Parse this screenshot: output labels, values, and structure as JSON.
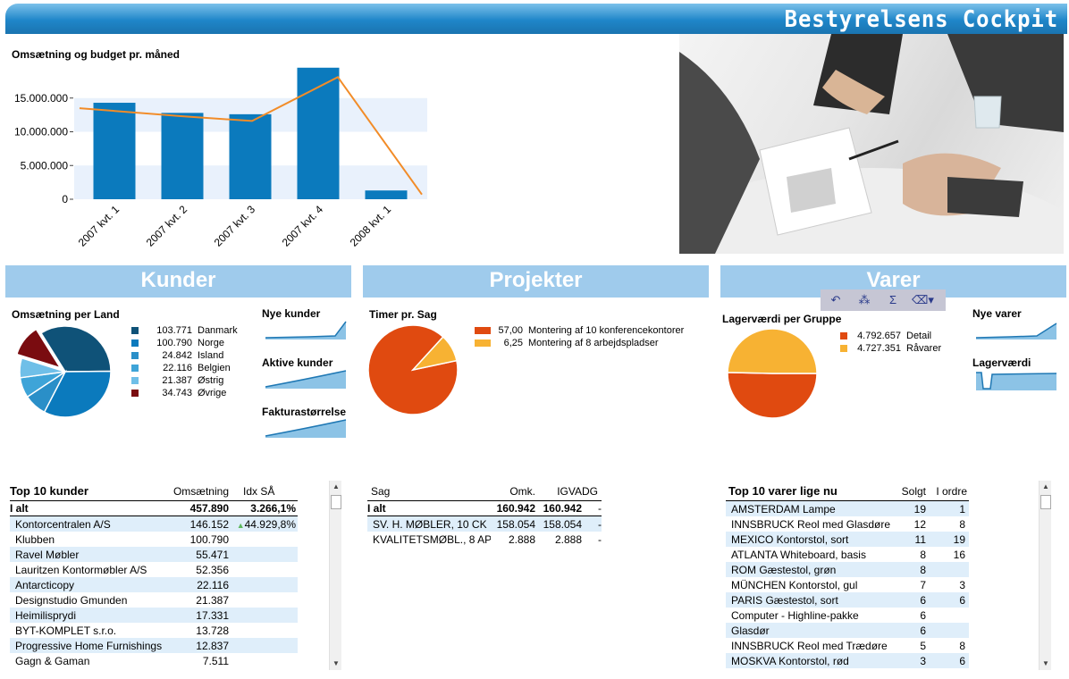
{
  "banner": {
    "title": "Bestyrelsens Cockpit"
  },
  "main_chart": {
    "title": "Omsætning og budget pr. måned",
    "y_ticks": [
      "15.000.000",
      "10.000.000",
      "5.000.000",
      "0"
    ]
  },
  "chart_data": [
    {
      "type": "bar",
      "title": "Omsætning og budget pr. måned",
      "categories": [
        "2007 kvt. 1",
        "2007 kvt. 2",
        "2007 kvt. 3",
        "2007 kvt. 4",
        "2008 kvt. 1"
      ],
      "series": [
        {
          "values": [
            14300000,
            12800000,
            12600000,
            19500000,
            1300000
          ],
          "color": "#0b7abd"
        },
        {
          "values": [
            13500000,
            12300000,
            11600000,
            18100000,
            700000
          ],
          "color": "#f28c28"
        }
      ],
      "ylim": [
        0,
        20000000
      ],
      "grid": true
    },
    {
      "type": "pie",
      "title": "Omsætning per Land",
      "labels": [
        "Danmark",
        "Norge",
        "Island",
        "Belgien",
        "Østrig",
        "Øvrige"
      ],
      "values": [
        103771,
        100790,
        24842,
        22116,
        21387,
        34743
      ],
      "colors": [
        "#0f5278",
        "#0b7abd",
        "#2a8fc8",
        "#3ea4d8",
        "#6fbfe8",
        "#7a0c10"
      ]
    },
    {
      "type": "pie",
      "title": "Timer pr. Sag",
      "labels": [
        "Montering af 10 konferencekontorer",
        "Montering af 8 arbejdspladser"
      ],
      "values": [
        57.0,
        6.25
      ],
      "colors": [
        "#e04a10",
        "#f7b233"
      ]
    },
    {
      "type": "pie",
      "title": "Lagerværdi per Gruppe",
      "labels": [
        "Detail",
        "Råvarer"
      ],
      "values": [
        4792657,
        4727351
      ],
      "colors": [
        "#e04a10",
        "#f7b233"
      ]
    }
  ],
  "sections": {
    "kunder": "Kunder",
    "projekter": "Projekter",
    "varer": "Varer"
  },
  "kunder": {
    "pie_title": "Omsætning per Land",
    "legend": [
      {
        "value": "103.771",
        "label": "Danmark",
        "color": "#0f5278"
      },
      {
        "value": "100.790",
        "label": "Norge",
        "color": "#0b7abd"
      },
      {
        "value": "24.842",
        "label": "Island",
        "color": "#2a8fc8"
      },
      {
        "value": "22.116",
        "label": "Belgien",
        "color": "#3ea4d8"
      },
      {
        "value": "21.387",
        "label": "Østrig",
        "color": "#6fbfe8"
      },
      {
        "value": "34.743",
        "label": "Øvrige",
        "color": "#7a0c10"
      }
    ],
    "sparks": [
      "Nye kunder",
      "Aktive kunder",
      "Fakturastørrelse"
    ],
    "table": {
      "title": "Top 10 kunder",
      "col_sales": "Omsætning",
      "col_idx": "Idx SÅ",
      "total": {
        "label": "I alt",
        "sales": "457.890",
        "idx": "3.266,1%"
      },
      "rows": [
        {
          "name": "Kontorcentralen A/S",
          "sales": "146.152",
          "idx": "44.929,8%"
        },
        {
          "name": "Klubben",
          "sales": "100.790",
          "idx": ""
        },
        {
          "name": "Ravel Møbler",
          "sales": "55.471",
          "idx": ""
        },
        {
          "name": "Lauritzen Kontormøbler A/S",
          "sales": "52.356",
          "idx": ""
        },
        {
          "name": "Antarcticopy",
          "sales": "22.116",
          "idx": ""
        },
        {
          "name": "Designstudio Gmunden",
          "sales": "21.387",
          "idx": ""
        },
        {
          "name": "Heimilisprydi",
          "sales": "17.331",
          "idx": ""
        },
        {
          "name": "BYT-KOMPLET s.r.o.",
          "sales": "13.728",
          "idx": ""
        },
        {
          "name": "Progressive Home Furnishings",
          "sales": "12.837",
          "idx": ""
        },
        {
          "name": "Gagn & Gaman",
          "sales": "7.511",
          "idx": ""
        }
      ]
    }
  },
  "projekter": {
    "pie_title": "Timer pr. Sag",
    "legend": [
      {
        "value": "57,00",
        "label": "Montering af 10 konferencekontorer",
        "color": "#e04a10"
      },
      {
        "value": "6,25",
        "label": "Montering af 8 arbejdspladser",
        "color": "#f7b233"
      }
    ],
    "table": {
      "col_sag": "Sag",
      "col_omk": "Omk.",
      "col_igva": "IGVA",
      "col_dg": "DG",
      "total": {
        "label": "I alt",
        "omk": "160.942",
        "igva": "160.942",
        "dg": "-"
      },
      "rows": [
        {
          "sag": "SV. H. MØBLER, 10 CK",
          "omk": "158.054",
          "igva": "158.054",
          "dg": "-"
        },
        {
          "sag": "KVALITETSMØBL., 8 AP",
          "omk": "2.888",
          "igva": "2.888",
          "dg": "-"
        }
      ]
    }
  },
  "varer": {
    "pie_title": "Lagerværdi per Gruppe",
    "legend": [
      {
        "value": "4.792.657",
        "label": "Detail",
        "color": "#e04a10"
      },
      {
        "value": "4.727.351",
        "label": "Råvarer",
        "color": "#f7b233"
      }
    ],
    "sparks": [
      "Nye varer",
      "Lagerværdi"
    ],
    "table": {
      "title": "Top 10 varer lige nu",
      "col_sold": "Solgt",
      "col_order": "I ordre",
      "rows": [
        {
          "name": "AMSTERDAM Lampe",
          "sold": "19",
          "order": "1"
        },
        {
          "name": "INNSBRUCK Reol med Glasdøre",
          "sold": "12",
          "order": "8"
        },
        {
          "name": "MEXICO Kontorstol, sort",
          "sold": "11",
          "order": "19"
        },
        {
          "name": "ATLANTA Whiteboard, basis",
          "sold": "8",
          "order": "16"
        },
        {
          "name": "ROM Gæstestol, grøn",
          "sold": "8",
          "order": ""
        },
        {
          "name": "MÜNCHEN Kontorstol, gul",
          "sold": "7",
          "order": "3"
        },
        {
          "name": "PARIS Gæstestol, sort",
          "sold": "6",
          "order": "6"
        },
        {
          "name": "Computer - Highline-pakke",
          "sold": "6",
          "order": ""
        },
        {
          "name": "Glasdør",
          "sold": "6",
          "order": ""
        },
        {
          "name": "INNSBRUCK Reol med Trædøre",
          "sold": "5",
          "order": "8"
        },
        {
          "name": "MOSKVA Kontorstol, rød",
          "sold": "3",
          "order": "6"
        }
      ]
    }
  }
}
